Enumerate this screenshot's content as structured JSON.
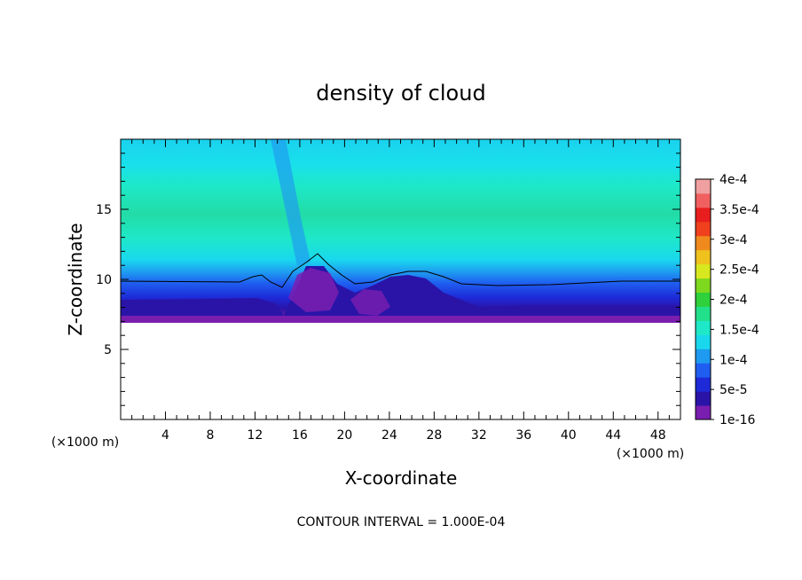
{
  "chart_data": {
    "type": "heatmap",
    "title": "density of cloud",
    "xlabel": "X-coordinate",
    "ylabel": "Z-coordinate",
    "x_unit": "(×1000 m)",
    "y_unit": "(×1000 m)",
    "xlim": [
      0,
      50
    ],
    "ylim": [
      0,
      20
    ],
    "x_ticks": [
      4,
      8,
      12,
      16,
      20,
      24,
      28,
      32,
      36,
      40,
      44,
      48
    ],
    "y_ticks": [
      5,
      10,
      15
    ],
    "footer": "CONTOUR INTERVAL = 1.000E-04",
    "colorbar": {
      "levels": [
        {
          "value": 1e-16,
          "label": "1e-16"
        },
        {
          "value": 5e-05,
          "label": "5e-5"
        },
        {
          "value": 0.0001,
          "label": "1e-4"
        },
        {
          "value": 0.00015,
          "label": "1.5e-4"
        },
        {
          "value": 0.0002,
          "label": "2e-4"
        },
        {
          "value": 0.00025,
          "label": "2.5e-4"
        },
        {
          "value": 0.0003,
          "label": "3e-4"
        },
        {
          "value": 0.00035,
          "label": "3.5e-4"
        },
        {
          "value": 0.0004,
          "label": "4e-4"
        }
      ],
      "colors": [
        "#7a1eb0",
        "#2a14a8",
        "#1e2ad8",
        "#1f5ef0",
        "#1e9af0",
        "#19d8ee",
        "#1ee8c8",
        "#22e08a",
        "#2ed03c",
        "#7ed81e",
        "#d8e81e",
        "#f0c21e",
        "#f08a1e",
        "#f0401e",
        "#e81e1e",
        "#f06060",
        "#f0a0a0"
      ]
    },
    "cloud_base_z": 7.2,
    "contour_line_z": 9.9
  }
}
